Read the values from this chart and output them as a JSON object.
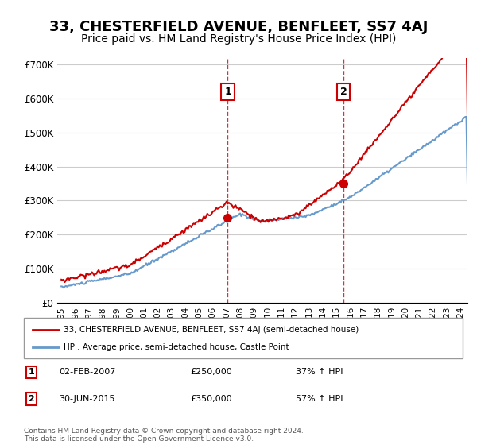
{
  "title": "33, CHESTERFIELD AVENUE, BENFLEET, SS7 4AJ",
  "subtitle": "Price paid vs. HM Land Registry's House Price Index (HPI)",
  "title_fontsize": 13,
  "subtitle_fontsize": 10,
  "ylabel_ticks": [
    "£0",
    "£100K",
    "£200K",
    "£300K",
    "£400K",
    "£500K",
    "£600K",
    "£700K"
  ],
  "ytick_vals": [
    0,
    100000,
    200000,
    300000,
    400000,
    500000,
    600000,
    700000
  ],
  "ylim": [
    0,
    720000
  ],
  "xlim_start": 1995.0,
  "xlim_end": 2024.5,
  "marker1_x": 2007.085,
  "marker1_y": 250000,
  "marker2_x": 2015.5,
  "marker2_y": 350000,
  "vline1_x": 2007.085,
  "vline2_x": 2015.5,
  "red_line_color": "#cc0000",
  "blue_line_color": "#6699cc",
  "vline_color": "#cc0000",
  "grid_color": "#cccccc",
  "background_color": "#ffffff",
  "legend_line1": "33, CHESTERFIELD AVENUE, BENFLEET, SS7 4AJ (semi-detached house)",
  "legend_line2": "HPI: Average price, semi-detached house, Castle Point",
  "ann1_label": "1",
  "ann2_label": "2",
  "ann1_date": "02-FEB-2007",
  "ann1_price": "£250,000",
  "ann1_hpi": "37% ↑ HPI",
  "ann2_date": "30-JUN-2015",
  "ann2_price": "£350,000",
  "ann2_hpi": "57% ↑ HPI",
  "footer": "Contains HM Land Registry data © Crown copyright and database right 2024.\nThis data is licensed under the Open Government Licence v3.0.",
  "xtick_years": [
    1995,
    1996,
    1997,
    1998,
    1999,
    2000,
    2001,
    2002,
    2003,
    2004,
    2005,
    2006,
    2007,
    2008,
    2009,
    2010,
    2011,
    2012,
    2013,
    2014,
    2015,
    2016,
    2017,
    2018,
    2019,
    2020,
    2021,
    2022,
    2023,
    2024
  ]
}
